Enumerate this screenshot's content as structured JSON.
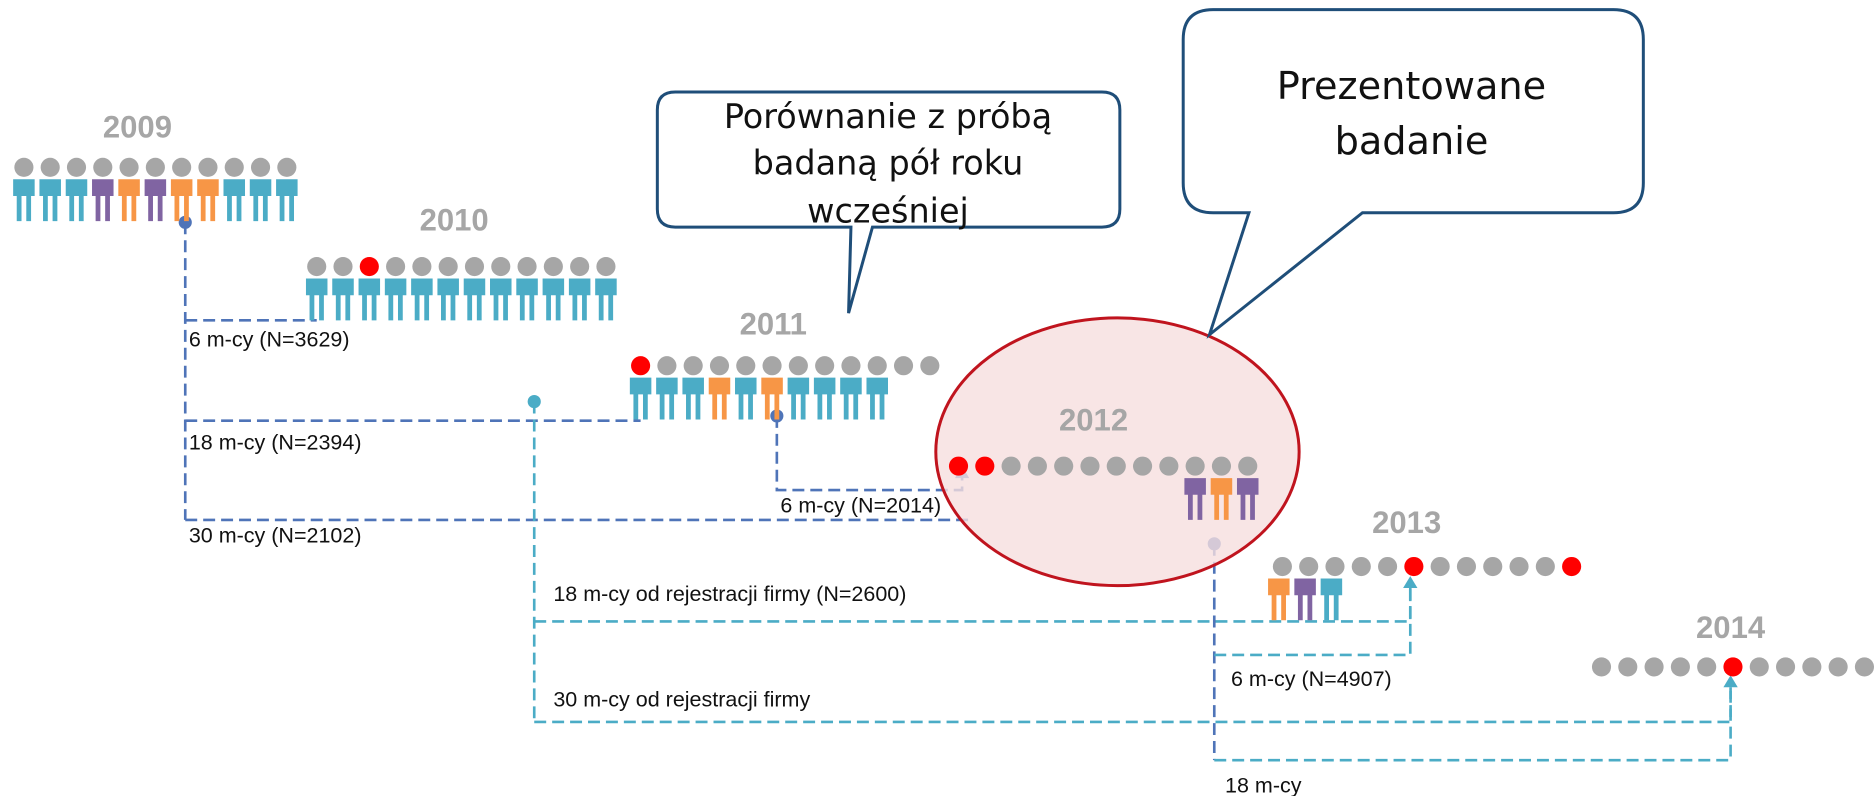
{
  "years": [
    "2009",
    "2010",
    "2011",
    "2012",
    "2013",
    "2014"
  ],
  "intervals": [
    "6 m-cy (N=3629)",
    "18 m-cy (N=2394)",
    "30 m-cy (N=2102)",
    "6 m-cy (N=2014)",
    "18 m-cy od rejestracji firmy (N=2600)",
    "30 m-cy od rejestracji firmy",
    "6 m-cy (N=4907)",
    "18 m-cy"
  ],
  "callouts": [
    {
      "lines": [
        "Porównanie z próbą",
        "badaną pół roku",
        "wcześniej"
      ]
    },
    {
      "lines": [
        "Prezentowane",
        "badanie"
      ]
    }
  ]
}
